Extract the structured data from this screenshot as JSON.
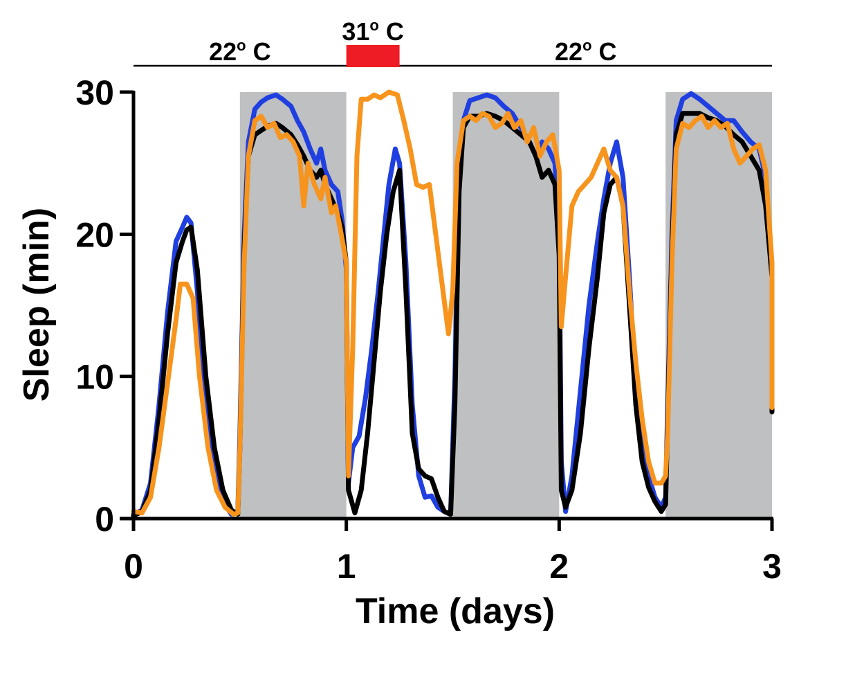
{
  "chart_data": {
    "type": "line",
    "title": "",
    "xlabel": "Time (days)",
    "ylabel": "Sleep (min)",
    "xlim": [
      0,
      3
    ],
    "ylim": [
      0,
      30
    ],
    "x_ticks": [
      "0",
      "1",
      "2",
      "3"
    ],
    "y_ticks": [
      "0",
      "10",
      "20",
      "30"
    ],
    "legend": "none",
    "grid": false,
    "dark_periods": [
      [
        0.5,
        1.0
      ],
      [
        1.5,
        2.0
      ],
      [
        2.5,
        3.0
      ]
    ],
    "temperature_protocol": [
      {
        "label": "22",
        "unit": "C",
        "start": 0.0,
        "end": 1.0,
        "heated": false
      },
      {
        "label": "31",
        "unit": "C",
        "start": 1.0,
        "end": 1.25,
        "heated": true
      },
      {
        "label": "22",
        "unit": "C",
        "start": 1.25,
        "end": 3.0,
        "heated": false
      }
    ],
    "series": [
      {
        "color": "#1f3fe0",
        "points": [
          [
            0,
            0.3
          ],
          [
            0.04,
            0.6
          ],
          [
            0.08,
            2.5
          ],
          [
            0.12,
            8
          ],
          [
            0.16,
            14.5
          ],
          [
            0.2,
            19.5
          ],
          [
            0.23,
            20.5
          ],
          [
            0.25,
            21.2
          ],
          [
            0.27,
            20.8
          ],
          [
            0.3,
            16
          ],
          [
            0.34,
            8
          ],
          [
            0.38,
            3.5
          ],
          [
            0.42,
            1.2
          ],
          [
            0.46,
            0.3
          ],
          [
            0.49,
            0.5
          ],
          [
            0.5,
            6
          ],
          [
            0.52,
            20
          ],
          [
            0.54,
            26.5
          ],
          [
            0.57,
            28.8
          ],
          [
            0.6,
            29.3
          ],
          [
            0.63,
            29.6
          ],
          [
            0.67,
            29.8
          ],
          [
            0.7,
            29.5
          ],
          [
            0.74,
            29
          ],
          [
            0.77,
            28
          ],
          [
            0.8,
            27.2
          ],
          [
            0.83,
            26
          ],
          [
            0.86,
            25
          ],
          [
            0.88,
            26
          ],
          [
            0.9,
            24.5
          ],
          [
            0.93,
            23.5
          ],
          [
            0.96,
            23
          ],
          [
            0.98,
            21
          ],
          [
            1.0,
            17.5
          ],
          [
            1.01,
            2.5
          ],
          [
            1.03,
            5
          ],
          [
            1.06,
            5.8
          ],
          [
            1.09,
            8.5
          ],
          [
            1.12,
            12
          ],
          [
            1.15,
            16
          ],
          [
            1.18,
            20.5
          ],
          [
            1.2,
            23.5
          ],
          [
            1.23,
            26
          ],
          [
            1.25,
            25
          ],
          [
            1.28,
            18
          ],
          [
            1.31,
            8
          ],
          [
            1.34,
            3
          ],
          [
            1.37,
            1.5
          ],
          [
            1.4,
            1.6
          ],
          [
            1.43,
            0.8
          ],
          [
            1.46,
            0.5
          ],
          [
            1.49,
            0.3
          ],
          [
            1.51,
            10
          ],
          [
            1.53,
            24
          ],
          [
            1.55,
            28
          ],
          [
            1.58,
            29.4
          ],
          [
            1.62,
            29.6
          ],
          [
            1.66,
            29.8
          ],
          [
            1.7,
            29.6
          ],
          [
            1.74,
            29
          ],
          [
            1.78,
            28.5
          ],
          [
            1.82,
            27.5
          ],
          [
            1.86,
            26.5
          ],
          [
            1.89,
            25.5
          ],
          [
            1.92,
            26.5
          ],
          [
            1.95,
            26
          ],
          [
            1.98,
            25
          ],
          [
            2.0,
            20
          ],
          [
            2.01,
            4
          ],
          [
            2.03,
            0.5
          ],
          [
            2.06,
            3
          ],
          [
            2.1,
            9
          ],
          [
            2.14,
            15
          ],
          [
            2.18,
            19.5
          ],
          [
            2.21,
            22.5
          ],
          [
            2.24,
            25
          ],
          [
            2.27,
            26.5
          ],
          [
            2.3,
            24
          ],
          [
            2.33,
            17
          ],
          [
            2.36,
            9
          ],
          [
            2.39,
            5
          ],
          [
            2.42,
            3
          ],
          [
            2.45,
            1.5
          ],
          [
            2.48,
            0.8
          ],
          [
            2.5,
            1.5
          ],
          [
            2.51,
            8
          ],
          [
            2.53,
            20
          ],
          [
            2.55,
            28
          ],
          [
            2.58,
            29.5
          ],
          [
            2.62,
            29.9
          ],
          [
            2.66,
            29.5
          ],
          [
            2.7,
            29
          ],
          [
            2.74,
            28.5
          ],
          [
            2.78,
            28
          ],
          [
            2.82,
            28
          ],
          [
            2.86,
            27.2
          ],
          [
            2.9,
            26.5
          ],
          [
            2.94,
            26
          ],
          [
            2.97,
            24
          ],
          [
            3.0,
            17
          ],
          [
            3.01,
            8
          ]
        ]
      },
      {
        "color": "#000000",
        "points": [
          [
            0,
            0.2
          ],
          [
            0.04,
            0.5
          ],
          [
            0.08,
            2
          ],
          [
            0.12,
            7
          ],
          [
            0.16,
            13
          ],
          [
            0.2,
            18
          ],
          [
            0.23,
            19.5
          ],
          [
            0.25,
            20.3
          ],
          [
            0.27,
            20.5
          ],
          [
            0.3,
            17.5
          ],
          [
            0.34,
            10
          ],
          [
            0.38,
            5
          ],
          [
            0.42,
            2
          ],
          [
            0.46,
            0.6
          ],
          [
            0.49,
            0.3
          ],
          [
            0.5,
            5
          ],
          [
            0.52,
            19
          ],
          [
            0.54,
            25.5
          ],
          [
            0.57,
            27
          ],
          [
            0.6,
            27.3
          ],
          [
            0.63,
            27.6
          ],
          [
            0.67,
            27.8
          ],
          [
            0.7,
            27.5
          ],
          [
            0.74,
            27
          ],
          [
            0.77,
            26.3
          ],
          [
            0.8,
            25.5
          ],
          [
            0.83,
            24.5
          ],
          [
            0.86,
            24
          ],
          [
            0.88,
            24.5
          ],
          [
            0.9,
            23.5
          ],
          [
            0.93,
            22.5
          ],
          [
            0.96,
            21.5
          ],
          [
            0.98,
            20.5
          ],
          [
            1.0,
            18
          ],
          [
            1.01,
            2
          ],
          [
            1.04,
            0.4
          ],
          [
            1.07,
            2
          ],
          [
            1.1,
            6
          ],
          [
            1.13,
            11
          ],
          [
            1.16,
            16
          ],
          [
            1.19,
            20
          ],
          [
            1.22,
            23
          ],
          [
            1.25,
            24.5
          ],
          [
            1.28,
            16
          ],
          [
            1.31,
            6
          ],
          [
            1.34,
            3.5
          ],
          [
            1.37,
            3
          ],
          [
            1.4,
            2.8
          ],
          [
            1.43,
            1.5
          ],
          [
            1.46,
            0.5
          ],
          [
            1.49,
            0.3
          ],
          [
            1.51,
            8
          ],
          [
            1.53,
            23
          ],
          [
            1.55,
            27.5
          ],
          [
            1.58,
            28.3
          ],
          [
            1.62,
            28.3
          ],
          [
            1.66,
            28.5
          ],
          [
            1.7,
            28.3
          ],
          [
            1.74,
            28
          ],
          [
            1.78,
            27.5
          ],
          [
            1.82,
            27
          ],
          [
            1.86,
            26.5
          ],
          [
            1.89,
            25.5
          ],
          [
            1.92,
            24
          ],
          [
            1.95,
            24.5
          ],
          [
            1.98,
            23.5
          ],
          [
            2.0,
            18.5
          ],
          [
            2.01,
            2
          ],
          [
            2.03,
            0.8
          ],
          [
            2.06,
            2
          ],
          [
            2.1,
            6
          ],
          [
            2.14,
            12
          ],
          [
            2.18,
            17
          ],
          [
            2.21,
            21.5
          ],
          [
            2.24,
            23.5
          ],
          [
            2.27,
            24
          ],
          [
            2.3,
            22
          ],
          [
            2.33,
            15
          ],
          [
            2.36,
            8
          ],
          [
            2.39,
            4
          ],
          [
            2.42,
            2.2
          ],
          [
            2.45,
            1.2
          ],
          [
            2.48,
            0.5
          ],
          [
            2.5,
            1
          ],
          [
            2.51,
            7
          ],
          [
            2.53,
            19
          ],
          [
            2.55,
            27
          ],
          [
            2.58,
            28.5
          ],
          [
            2.62,
            28.5
          ],
          [
            2.66,
            28.5
          ],
          [
            2.7,
            28.2
          ],
          [
            2.74,
            28
          ],
          [
            2.78,
            27.6
          ],
          [
            2.82,
            27
          ],
          [
            2.86,
            26.5
          ],
          [
            2.9,
            25.5
          ],
          [
            2.94,
            24.5
          ],
          [
            2.97,
            22
          ],
          [
            3.0,
            17
          ],
          [
            3.01,
            7.5
          ]
        ]
      },
      {
        "color": "#f7941d",
        "points": [
          [
            0,
            0.5
          ],
          [
            0.04,
            0.4
          ],
          [
            0.08,
            1.5
          ],
          [
            0.12,
            5
          ],
          [
            0.16,
            9.5
          ],
          [
            0.2,
            14
          ],
          [
            0.22,
            16.5
          ],
          [
            0.25,
            16.5
          ],
          [
            0.28,
            15.5
          ],
          [
            0.31,
            10
          ],
          [
            0.35,
            5
          ],
          [
            0.39,
            2
          ],
          [
            0.43,
            0.8
          ],
          [
            0.47,
            0.3
          ],
          [
            0.49,
            0.4
          ],
          [
            0.5,
            5
          ],
          [
            0.52,
            18
          ],
          [
            0.54,
            25.5
          ],
          [
            0.57,
            28
          ],
          [
            0.6,
            28.3
          ],
          [
            0.63,
            27.5
          ],
          [
            0.66,
            27.8
          ],
          [
            0.69,
            26.8
          ],
          [
            0.72,
            27
          ],
          [
            0.75,
            26.5
          ],
          [
            0.78,
            25.5
          ],
          [
            0.8,
            22
          ],
          [
            0.82,
            25
          ],
          [
            0.85,
            23.5
          ],
          [
            0.88,
            22.5
          ],
          [
            0.9,
            24
          ],
          [
            0.93,
            21.5
          ],
          [
            0.95,
            22
          ],
          [
            0.97,
            20.5
          ],
          [
            1.0,
            18
          ],
          [
            1.01,
            3
          ],
          [
            1.03,
            12
          ],
          [
            1.05,
            25.5
          ],
          [
            1.07,
            29.5
          ],
          [
            1.1,
            29.5
          ],
          [
            1.13,
            29.8
          ],
          [
            1.16,
            29.6
          ],
          [
            1.2,
            30
          ],
          [
            1.24,
            29.8
          ],
          [
            1.27,
            28
          ],
          [
            1.3,
            26
          ],
          [
            1.33,
            23.5
          ],
          [
            1.36,
            23.3
          ],
          [
            1.39,
            23.5
          ],
          [
            1.42,
            20
          ],
          [
            1.45,
            16.5
          ],
          [
            1.48,
            13
          ],
          [
            1.5,
            16
          ],
          [
            1.52,
            25
          ],
          [
            1.55,
            28
          ],
          [
            1.58,
            28.3
          ],
          [
            1.61,
            28
          ],
          [
            1.64,
            28.5
          ],
          [
            1.67,
            28.3
          ],
          [
            1.7,
            27.5
          ],
          [
            1.73,
            27.8
          ],
          [
            1.76,
            28.5
          ],
          [
            1.79,
            27.5
          ],
          [
            1.82,
            28
          ],
          [
            1.85,
            26.5
          ],
          [
            1.88,
            27.5
          ],
          [
            1.91,
            25.5
          ],
          [
            1.94,
            26.5
          ],
          [
            1.97,
            27
          ],
          [
            2.0,
            24.5
          ],
          [
            2.01,
            13.5
          ],
          [
            2.03,
            17
          ],
          [
            2.06,
            22
          ],
          [
            2.09,
            23
          ],
          [
            2.12,
            23.5
          ],
          [
            2.15,
            24
          ],
          [
            2.18,
            25
          ],
          [
            2.21,
            26
          ],
          [
            2.24,
            24.5
          ],
          [
            2.27,
            24
          ],
          [
            2.3,
            22
          ],
          [
            2.33,
            16
          ],
          [
            2.36,
            11
          ],
          [
            2.39,
            7
          ],
          [
            2.42,
            4
          ],
          [
            2.45,
            2.5
          ],
          [
            2.48,
            2.5
          ],
          [
            2.5,
            3
          ],
          [
            2.51,
            6
          ],
          [
            2.53,
            18
          ],
          [
            2.55,
            26
          ],
          [
            2.58,
            27.8
          ],
          [
            2.61,
            27.5
          ],
          [
            2.64,
            28
          ],
          [
            2.67,
            28.3
          ],
          [
            2.7,
            27.5
          ],
          [
            2.73,
            28
          ],
          [
            2.76,
            27.5
          ],
          [
            2.79,
            27.8
          ],
          [
            2.82,
            26
          ],
          [
            2.85,
            25
          ],
          [
            2.88,
            25.5
          ],
          [
            2.91,
            26
          ],
          [
            2.94,
            26.3
          ],
          [
            2.97,
            24.5
          ],
          [
            3.0,
            18
          ],
          [
            3.01,
            7.8
          ]
        ]
      }
    ]
  }
}
